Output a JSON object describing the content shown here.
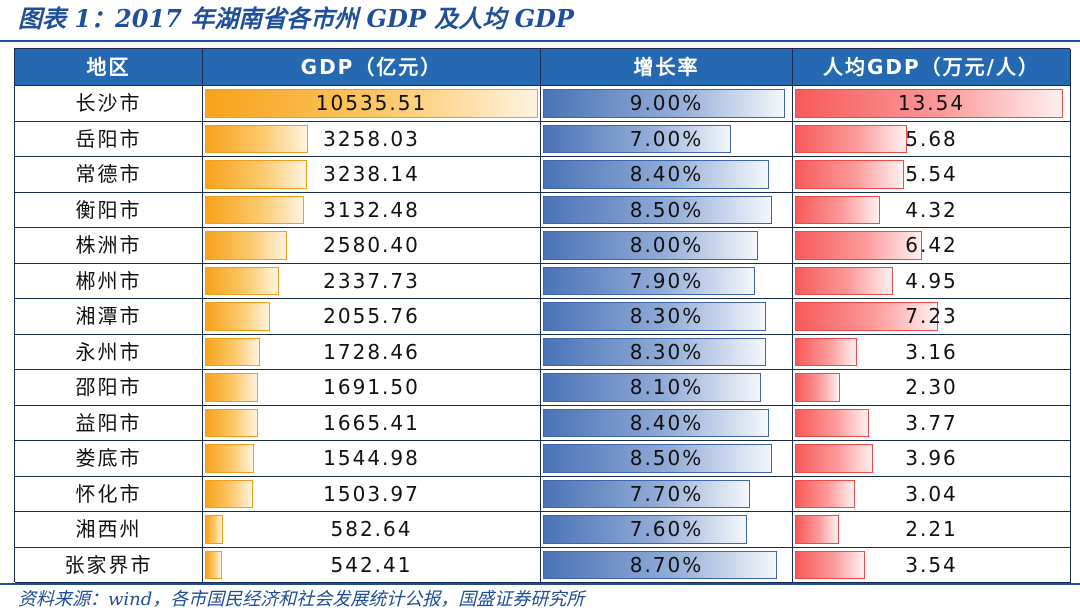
{
  "title": "图表 1：2017 年湖南省各市州 GDP 及人均 GDP",
  "source": "资料来源：wind，各市国民经济和社会发展统计公报，国盛证券研究所",
  "table": {
    "headers": [
      "地区",
      "GDP（亿元）",
      "增长率",
      "人均GDP（万元/人）"
    ],
    "bar_colors": {
      "gdp": "#f7a21b",
      "growth": "#4b73b7",
      "per_capita": "#f75a5a"
    },
    "bar_max": {
      "gdp": 10535.51,
      "growth": 9.0,
      "per_capita": 13.54
    },
    "rows": [
      {
        "region": "长沙市",
        "gdp": "10535.51",
        "growth": "9.00%",
        "per_capita": "13.54"
      },
      {
        "region": "岳阳市",
        "gdp": "3258.03",
        "growth": "7.00%",
        "per_capita": "5.68"
      },
      {
        "region": "常德市",
        "gdp": "3238.14",
        "growth": "8.40%",
        "per_capita": "5.54"
      },
      {
        "region": "衡阳市",
        "gdp": "3132.48",
        "growth": "8.50%",
        "per_capita": "4.32"
      },
      {
        "region": "株洲市",
        "gdp": "2580.40",
        "growth": "8.00%",
        "per_capita": "6.42"
      },
      {
        "region": "郴州市",
        "gdp": "2337.73",
        "growth": "7.90%",
        "per_capita": "4.95"
      },
      {
        "region": "湘潭市",
        "gdp": "2055.76",
        "growth": "8.30%",
        "per_capita": "7.23"
      },
      {
        "region": "永州市",
        "gdp": "1728.46",
        "growth": "8.30%",
        "per_capita": "3.16"
      },
      {
        "region": "邵阳市",
        "gdp": "1691.50",
        "growth": "8.10%",
        "per_capita": "2.30"
      },
      {
        "region": "益阳市",
        "gdp": "1665.41",
        "growth": "8.40%",
        "per_capita": "3.77"
      },
      {
        "region": "娄底市",
        "gdp": "1544.98",
        "growth": "8.50%",
        "per_capita": "3.96"
      },
      {
        "region": "怀化市",
        "gdp": "1503.97",
        "growth": "7.70%",
        "per_capita": "3.04"
      },
      {
        "region": "湘西州",
        "gdp": "582.64",
        "growth": "7.60%",
        "per_capita": "2.21"
      },
      {
        "region": "张家界市",
        "gdp": "542.41",
        "growth": "8.70%",
        "per_capita": "3.54"
      }
    ]
  }
}
